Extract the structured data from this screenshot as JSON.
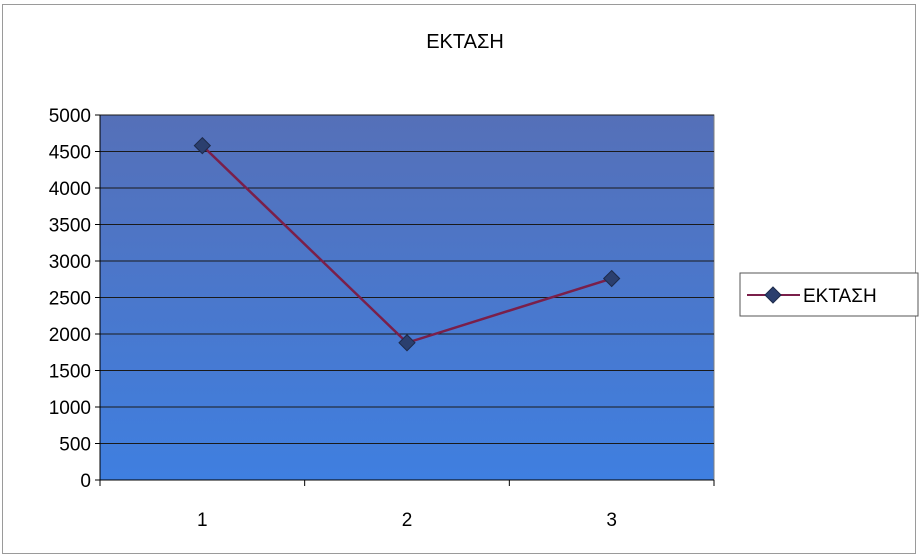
{
  "chart_data": {
    "type": "line",
    "title": "ΕΚΤΑΣΗ",
    "xlabel": "",
    "ylabel": "",
    "categories": [
      "1",
      "2",
      "3"
    ],
    "series": [
      {
        "name": "ΕΚΤΑΣΗ",
        "values": [
          4580,
          1880,
          2760
        ],
        "color": "#7a1f4a",
        "marker": "diamond",
        "marker_color": "#2b3f6e"
      }
    ],
    "ylim": [
      0,
      5000
    ],
    "yticks": [
      "0",
      "500",
      "1000",
      "1500",
      "2000",
      "2500",
      "3000",
      "3500",
      "4000",
      "4500",
      "5000"
    ],
    "grid": true,
    "legend": "right",
    "plot_background": "#4d6ec4"
  }
}
